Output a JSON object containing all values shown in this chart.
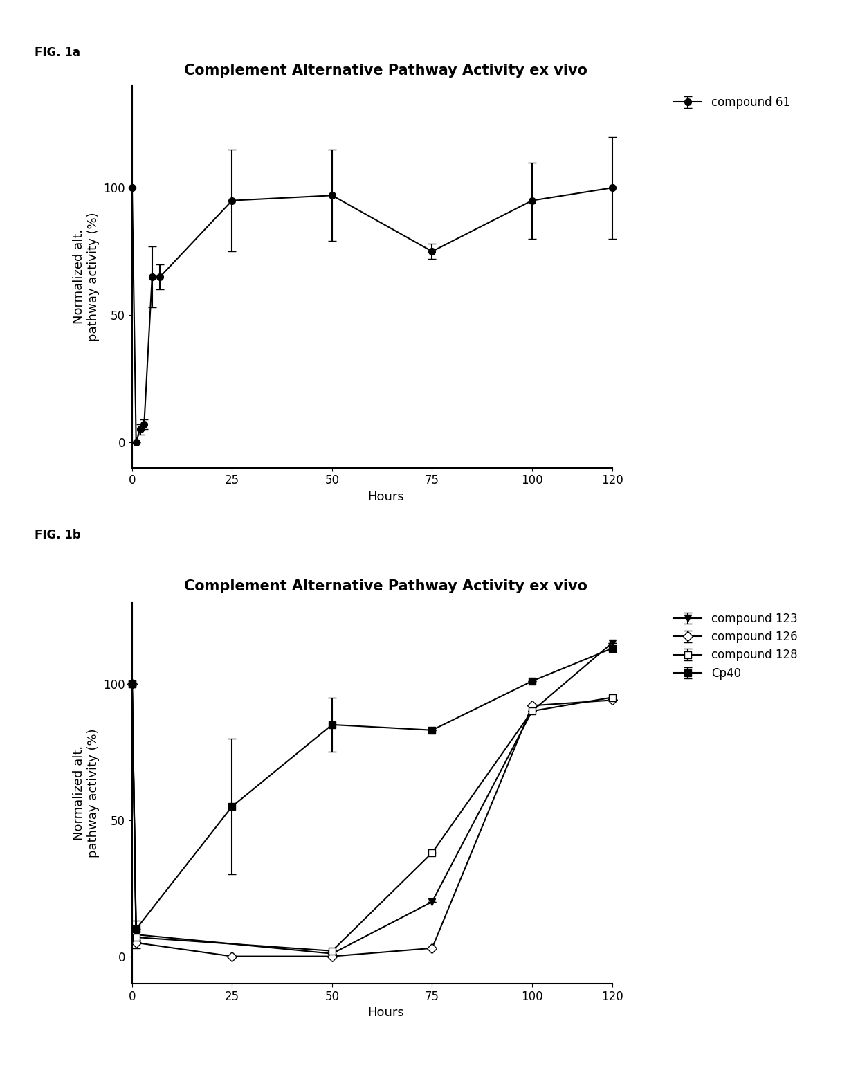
{
  "fig1a": {
    "title": "Complement Alternative Pathway Activity ex vivo",
    "xlabel": "Hours",
    "ylabel": "Normalized alt.\npathway activity (%)",
    "fig_label": "FIG. 1a",
    "compound61": {
      "x": [
        0,
        1,
        2,
        3,
        5,
        7,
        25,
        50,
        75,
        100,
        120
      ],
      "y": [
        100,
        0,
        5,
        7,
        65,
        65,
        95,
        97,
        75,
        95,
        100
      ],
      "yerr_low": [
        0,
        0,
        2,
        2,
        12,
        5,
        20,
        18,
        3,
        15,
        20
      ],
      "yerr_high": [
        0,
        0,
        2,
        2,
        12,
        5,
        20,
        18,
        3,
        15,
        20
      ],
      "label": "compound 61"
    },
    "ylim": [
      -10,
      140
    ],
    "xlim": [
      -3,
      130
    ],
    "xticks": [
      0,
      25,
      50,
      75,
      100,
      120
    ],
    "yticks": [
      0,
      50,
      100
    ]
  },
  "fig1b": {
    "title": "Complement Alternative Pathway Activity ex vivo",
    "xlabel": "Hours",
    "ylabel": "Normalized alt.\npathway activity (%)",
    "fig_label": "FIG. 1b",
    "compound123": {
      "x": [
        0,
        1,
        50,
        75,
        100,
        120
      ],
      "y": [
        100,
        8,
        1,
        20,
        90,
        115
      ],
      "yerr_low": [
        0,
        2,
        0,
        0,
        0,
        0
      ],
      "yerr_high": [
        0,
        2,
        0,
        0,
        0,
        0
      ],
      "label": "compound 123"
    },
    "compound126": {
      "x": [
        0,
        1,
        25,
        50,
        75,
        100,
        120
      ],
      "y": [
        100,
        5,
        0,
        0,
        3,
        92,
        94
      ],
      "yerr_low": [
        0,
        2,
        0,
        0,
        0,
        0,
        0
      ],
      "yerr_high": [
        0,
        2,
        0,
        0,
        0,
        0,
        0
      ],
      "label": "compound 126"
    },
    "compound128": {
      "x": [
        0,
        1,
        50,
        75,
        100,
        120
      ],
      "y": [
        100,
        7,
        2,
        38,
        90,
        95
      ],
      "yerr_low": [
        0,
        2,
        0,
        0,
        0,
        0
      ],
      "yerr_high": [
        0,
        2,
        0,
        0,
        0,
        0
      ],
      "label": "compound 128"
    },
    "cp40": {
      "x": [
        0,
        1,
        25,
        50,
        75,
        100,
        120
      ],
      "y": [
        100,
        10,
        55,
        85,
        83,
        101,
        113
      ],
      "yerr_low": [
        0,
        3,
        25,
        10,
        0,
        0,
        0
      ],
      "yerr_high": [
        0,
        3,
        25,
        10,
        0,
        0,
        0
      ],
      "label": "Cp40"
    },
    "ylim": [
      -10,
      130
    ],
    "xlim": [
      -3,
      130
    ],
    "xticks": [
      0,
      25,
      50,
      75,
      100,
      120
    ],
    "yticks": [
      0,
      50,
      100
    ]
  },
  "line_color": "#000000",
  "background_color": "#ffffff",
  "title_fontsize": 15,
  "label_fontsize": 13,
  "tick_fontsize": 12,
  "legend_fontsize": 12,
  "figlabel_fontsize": 12
}
